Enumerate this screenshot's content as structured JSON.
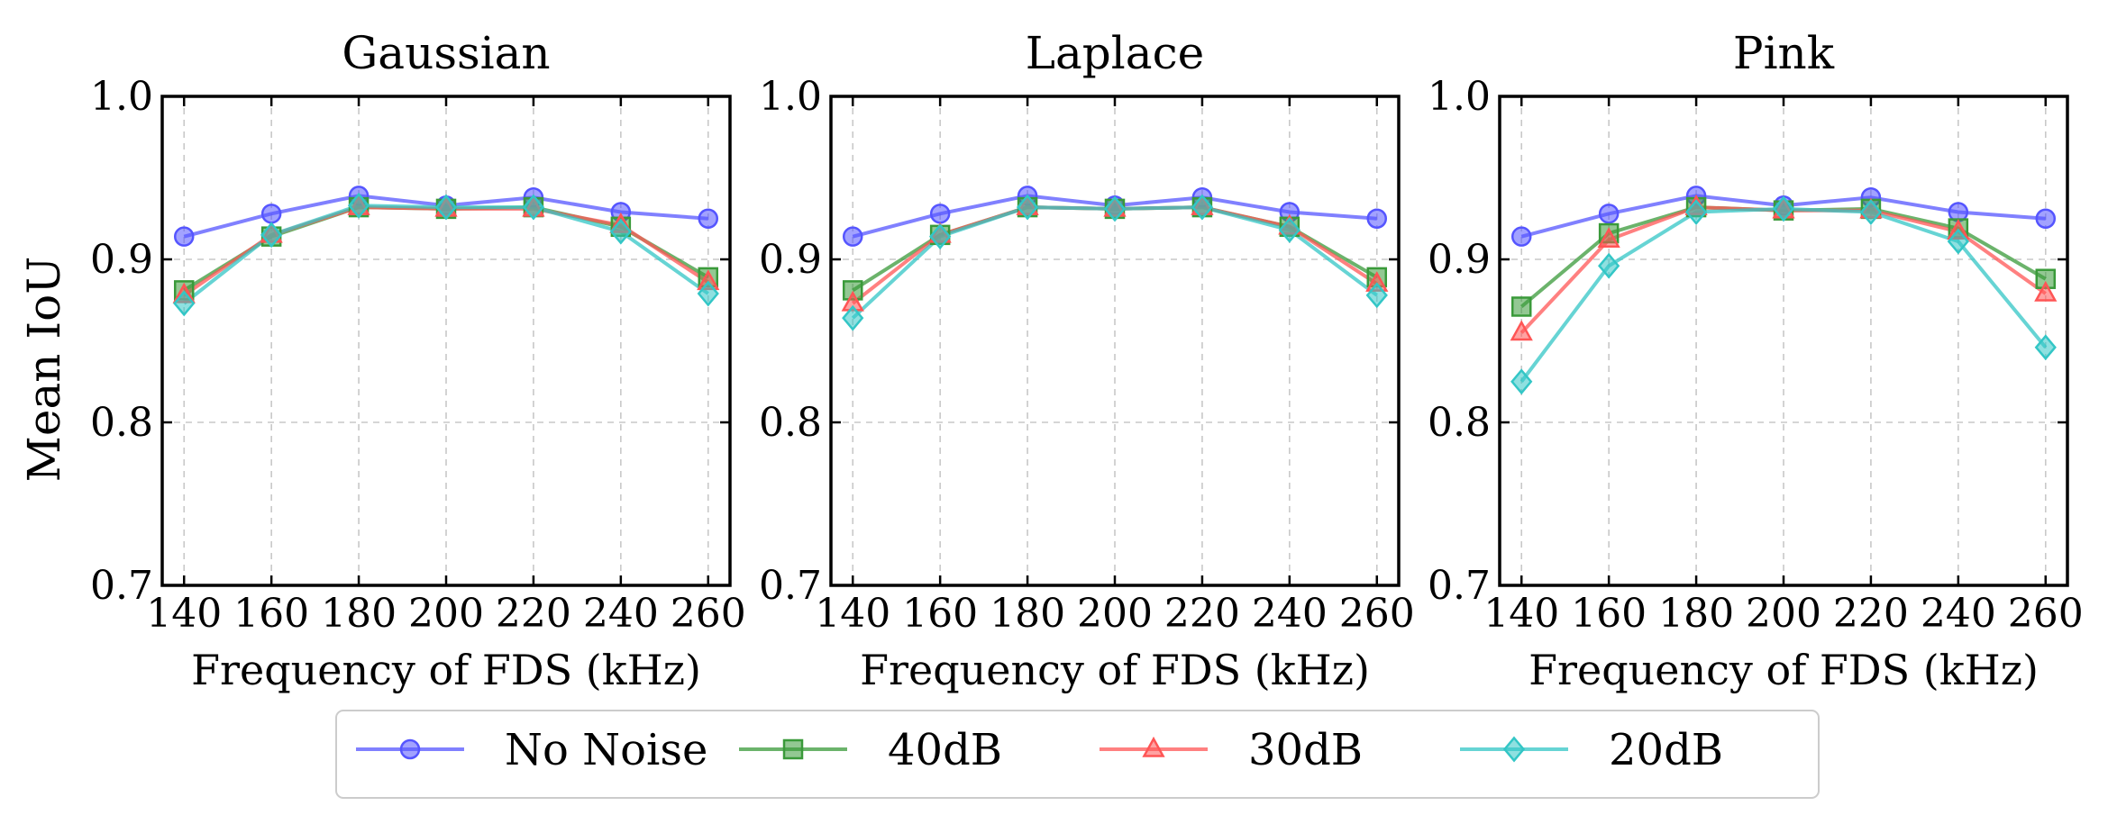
{
  "chart_data": [
    {
      "type": "line",
      "title": "Gaussian",
      "xlabel": "Frequency of FDS (kHz)",
      "ylabel": "Mean IoU",
      "x": [
        140,
        160,
        180,
        200,
        220,
        240,
        260
      ],
      "xticks": [
        "140",
        "160",
        "180",
        "200",
        "220",
        "240",
        "260"
      ],
      "ylim": [
        0.7,
        1.0
      ],
      "yticks": [
        "0.7",
        "0.8",
        "0.9",
        "1.0"
      ],
      "grid": true,
      "series": [
        {
          "name": "No Noise",
          "values": [
            0.914,
            0.928,
            0.939,
            0.933,
            0.938,
            0.929,
            0.925
          ]
        },
        {
          "name": "40dB",
          "values": [
            0.881,
            0.914,
            0.932,
            0.931,
            0.932,
            0.92,
            0.889
          ]
        },
        {
          "name": "30dB",
          "values": [
            0.878,
            0.915,
            0.932,
            0.931,
            0.931,
            0.921,
            0.886
          ]
        },
        {
          "name": "20dB",
          "values": [
            0.873,
            0.915,
            0.933,
            0.932,
            0.932,
            0.917,
            0.879
          ]
        }
      ]
    },
    {
      "type": "line",
      "title": "Laplace",
      "xlabel": "Frequency of FDS (kHz)",
      "ylabel": "",
      "x": [
        140,
        160,
        180,
        200,
        220,
        240,
        260
      ],
      "xticks": [
        "140",
        "160",
        "180",
        "200",
        "220",
        "240",
        "260"
      ],
      "ylim": [
        0.7,
        1.0
      ],
      "yticks": [
        "0.7",
        "0.8",
        "0.9",
        "1.0"
      ],
      "grid": true,
      "series": [
        {
          "name": "No Noise",
          "values": [
            0.914,
            0.928,
            0.939,
            0.933,
            0.938,
            0.929,
            0.925
          ]
        },
        {
          "name": "40dB",
          "values": [
            0.881,
            0.915,
            0.932,
            0.931,
            0.932,
            0.92,
            0.889
          ]
        },
        {
          "name": "30dB",
          "values": [
            0.873,
            0.915,
            0.932,
            0.931,
            0.932,
            0.92,
            0.885
          ]
        },
        {
          "name": "20dB",
          "values": [
            0.864,
            0.914,
            0.932,
            0.931,
            0.932,
            0.918,
            0.878
          ]
        }
      ]
    },
    {
      "type": "line",
      "title": "Pink",
      "xlabel": "Frequency of FDS (kHz)",
      "ylabel": "",
      "x": [
        140,
        160,
        180,
        200,
        220,
        240,
        260
      ],
      "xticks": [
        "140",
        "160",
        "180",
        "200",
        "220",
        "240",
        "260"
      ],
      "ylim": [
        0.7,
        1.0
      ],
      "yticks": [
        "0.7",
        "0.8",
        "0.9",
        "1.0"
      ],
      "grid": true,
      "series": [
        {
          "name": "No Noise",
          "values": [
            0.914,
            0.928,
            0.939,
            0.933,
            0.938,
            0.929,
            0.925
          ]
        },
        {
          "name": "40dB",
          "values": [
            0.871,
            0.916,
            0.932,
            0.93,
            0.931,
            0.919,
            0.888
          ]
        },
        {
          "name": "30dB",
          "values": [
            0.855,
            0.912,
            0.932,
            0.93,
            0.93,
            0.917,
            0.879
          ]
        },
        {
          "name": "20dB",
          "values": [
            0.825,
            0.896,
            0.929,
            0.931,
            0.929,
            0.911,
            0.846
          ]
        }
      ]
    }
  ],
  "legend": {
    "position": "bottom",
    "entries": [
      {
        "label": "No Noise",
        "color": "#5555ff",
        "marker": "circle"
      },
      {
        "label": "40dB",
        "color": "#3a9a3a",
        "marker": "square"
      },
      {
        "label": "30dB",
        "color": "#ff5555",
        "marker": "triangle"
      },
      {
        "label": "20dB",
        "color": "#33c6c6",
        "marker": "diamond"
      }
    ]
  }
}
